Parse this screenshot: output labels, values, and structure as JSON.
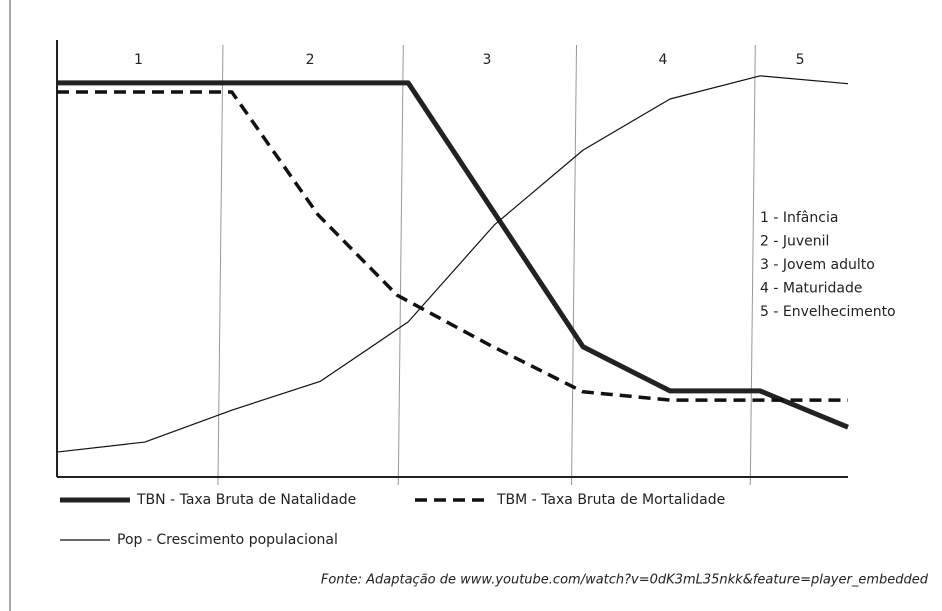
{
  "chart_data": {
    "type": "line",
    "xlim": [
      0,
      100
    ],
    "ylim": [
      0,
      100
    ],
    "stages": {
      "labels": [
        "1",
        "2",
        "3",
        "4",
        "5"
      ],
      "boundaries": [
        20.6,
        43.4,
        65.3,
        87.9
      ]
    },
    "key": [
      "1 -  Infância",
      "2 - Juvenil",
      "3 - Jovem adulto",
      "4 - Maturidade",
      "5 - Envelhecimento"
    ],
    "series": [
      {
        "name": "TBN - Taxa Bruta de Natalidade",
        "color": "#222222",
        "line_width": 5,
        "dashed": false,
        "x": [
          0,
          44.4,
          66.5,
          77.5,
          88.9,
          100
        ],
        "values": [
          90.2,
          90.2,
          29.8,
          19.7,
          19.7,
          11.4
        ]
      },
      {
        "name": "TBM - Taxa Bruta de Mortalidade",
        "color": "#111111",
        "line_width": 3.5,
        "dashed": true,
        "x": [
          0,
          22.1,
          33.0,
          43.0,
          54.7,
          66.5,
          77.5,
          100
        ],
        "values": [
          88.1,
          88.1,
          60.0,
          41.6,
          30.2,
          19.5,
          17.6,
          17.6
        ]
      },
      {
        "name": "Pop - Crescimento populacional",
        "color": "#111111",
        "line_width": 1.2,
        "dashed": false,
        "x": [
          0,
          11.1,
          22.1,
          33.3,
          44.4,
          55.3,
          66.5,
          77.5,
          88.9,
          100
        ],
        "values": [
          5.7,
          8.0,
          15.3,
          21.9,
          35.5,
          57.7,
          74.8,
          86.5,
          91.8,
          90.0
        ]
      }
    ],
    "source": "Fonte: Adaptação de www.youtube.com/watch?v=0dK3mL35nkk&feature=player_embedded"
  }
}
